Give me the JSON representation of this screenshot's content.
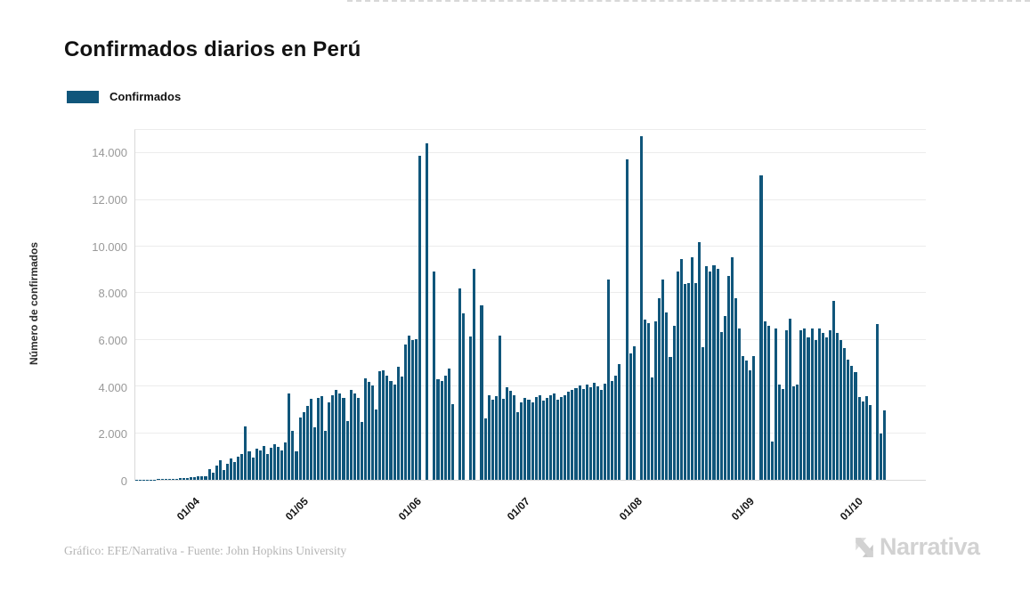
{
  "page": {
    "title": "Confirmados diarios en Perú"
  },
  "legend": {
    "label": "Confirmados",
    "swatch_color": "#10567b"
  },
  "footer": {
    "credit": "Gráfico: EFE/Narrativa - Fuente: John Hopkins University",
    "brand": "Narrativa"
  },
  "colors": {
    "bar": "#10567b",
    "grid": "#ececec",
    "axis": "#d9d9d9",
    "y_tick_text": "#999999",
    "x_tick_text": "#141414",
    "title_text": "#121212",
    "credit_text": "#b5b5b5",
    "brand_text": "#d2d2d2"
  },
  "chart_data": {
    "type": "bar",
    "title": "Confirmados diarios en Perú",
    "series_name": "Confirmados",
    "xlabel": "",
    "ylabel": "Número de confirmados",
    "ylim": [
      0,
      15000
    ],
    "grid": "horizontal",
    "legend_position": "top-left",
    "y_ticks": [
      {
        "label": "0",
        "value": 0
      },
      {
        "label": "2.000",
        "value": 2000
      },
      {
        "label": "4.000",
        "value": 4000
      },
      {
        "label": "6.000",
        "value": 6000
      },
      {
        "label": "8.000",
        "value": 8000
      },
      {
        "label": "10.000",
        "value": 10000
      },
      {
        "label": "12.000",
        "value": 12000
      },
      {
        "label": "14.000",
        "value": 14000
      }
    ],
    "x_ticks": [
      {
        "label": "01/04",
        "day_index": 16
      },
      {
        "label": "01/05",
        "day_index": 46
      },
      {
        "label": "01/06",
        "day_index": 77
      },
      {
        "label": "01/07",
        "day_index": 107
      },
      {
        "label": "01/08",
        "day_index": 138
      },
      {
        "label": "01/09",
        "day_index": 169
      },
      {
        "label": "01/10",
        "day_index": 199
      }
    ],
    "x_start": "16/03",
    "x_frequency": "daily",
    "values": [
      8,
      10,
      12,
      15,
      14,
      18,
      22,
      20,
      26,
      30,
      28,
      35,
      60,
      75,
      90,
      110,
      130,
      150,
      140,
      170,
      460,
      320,
      620,
      850,
      420,
      700,
      900,
      760,
      1000,
      1100,
      2290,
      1230,
      950,
      1320,
      1270,
      1460,
      1110,
      1370,
      1520,
      1420,
      1270,
      1620,
      3690,
      2110,
      1230,
      2670,
      2910,
      3160,
      3480,
      2270,
      3510,
      3580,
      2110,
      3320,
      3610,
      3870,
      3720,
      3520,
      2510,
      3870,
      3700,
      3510,
      2480,
      4340,
      4210,
      4050,
      3010,
      4640,
      4710,
      4460,
      4250,
      4100,
      4840,
      4430,
      5790,
      6180,
      5980,
      6030,
      13880,
      0,
      14420,
      0,
      8940,
      4310,
      4240,
      4450,
      4760,
      3240,
      0,
      8190,
      7130,
      0,
      6130,
      9040,
      0,
      7480,
      2620,
      3620,
      3440,
      3570,
      6170,
      3490,
      3960,
      3810,
      3610,
      2910,
      3320,
      3510,
      3420,
      3340,
      3550,
      3630,
      3410,
      3520,
      3610,
      3690,
      3450,
      3560,
      3640,
      3780,
      3860,
      3950,
      4060,
      3880,
      4090,
      3980,
      4150,
      4010,
      3850,
      4120,
      8580,
      4230,
      4480,
      4950,
      0,
      13760,
      5420,
      5740,
      0,
      14730,
      6880,
      6730,
      4400,
      6800,
      7800,
      8570,
      7170,
      5270,
      6600,
      8950,
      9460,
      8380,
      8450,
      9550,
      8450,
      10180,
      5700,
      9170,
      8920,
      9210,
      9050,
      6350,
      7010,
      8740,
      9530,
      7800,
      6500,
      5300,
      5100,
      4700,
      5300,
      0,
      13050,
      6800,
      6600,
      1650,
      6500,
      4100,
      3900,
      6400,
      6900,
      4000,
      4100,
      6400,
      6500,
      6100,
      6500,
      6000,
      6480,
      6300,
      6100,
      6400,
      7690,
      6300,
      5980,
      5640,
      5140,
      4880,
      4600,
      3550,
      3360,
      3600,
      3200,
      0,
      6670,
      1970,
      2980
    ]
  }
}
